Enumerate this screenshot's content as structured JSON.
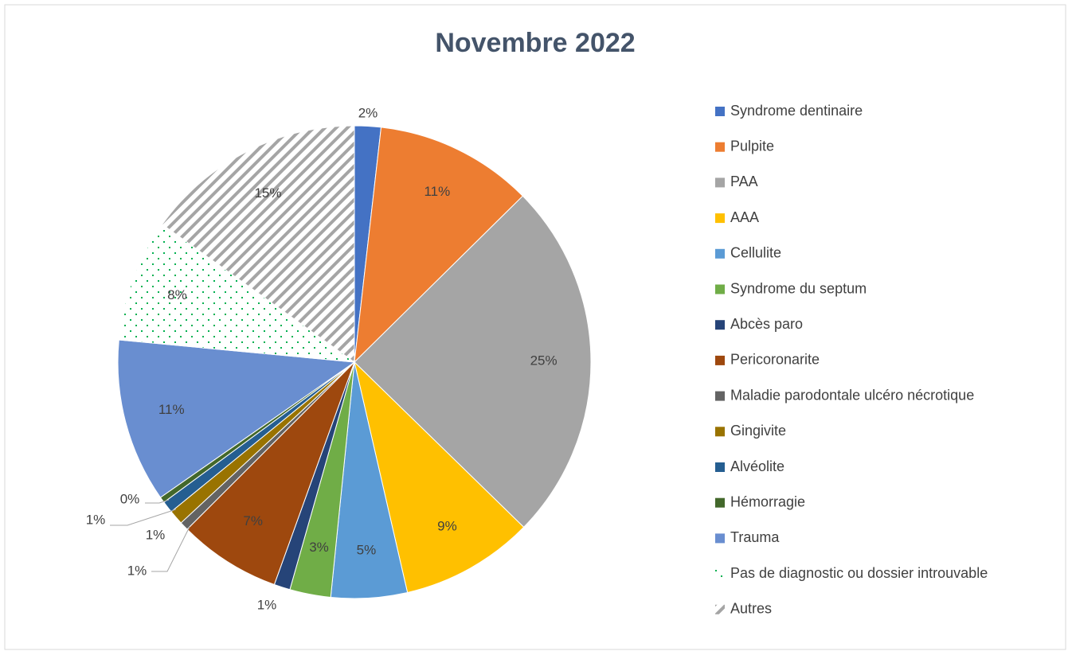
{
  "chart_data": {
    "type": "pie",
    "title": "Novembre 2022",
    "categories": [
      "Syndrome dentinaire",
      "Pulpite",
      "PAA",
      "AAA",
      "Cellulite",
      "Syndrome du septum",
      "Abcès paro",
      "Pericoronarite",
      "Maladie parodontale ulcéro nécrotique",
      "Gingivite",
      "Alvéolite",
      "Hémorragie",
      "Trauma",
      "Pas de diagnostic ou dossier introuvable",
      "Autres"
    ],
    "values": [
      1.8,
      10.8,
      24.7,
      9.1,
      5.2,
      2.8,
      1.1,
      7.0,
      0.6,
      1.0,
      0.8,
      0.4,
      11.2,
      8.4,
      15.1
    ],
    "value_labels": [
      "2%",
      "11%",
      "25%",
      "9%",
      "5%",
      "3%",
      "1%",
      "7%",
      "1%",
      "1%",
      "1%",
      "0%",
      "11%",
      "8%",
      "15%"
    ],
    "colors": [
      "#4472c4",
      "#ed7d31",
      "#a5a5a5",
      "#ffc000",
      "#5b9bd5",
      "#70ad47",
      "#264478",
      "#9e480e",
      "#636363",
      "#997300",
      "#255e91",
      "#43682b",
      "#698ed0",
      "#00b050",
      "#a5a5a5"
    ],
    "fills": [
      "solid",
      "solid",
      "solid",
      "solid",
      "solid",
      "solid",
      "solid",
      "solid",
      "solid",
      "solid",
      "solid",
      "solid",
      "solid",
      "dots",
      "hatch"
    ],
    "legend": "right"
  }
}
